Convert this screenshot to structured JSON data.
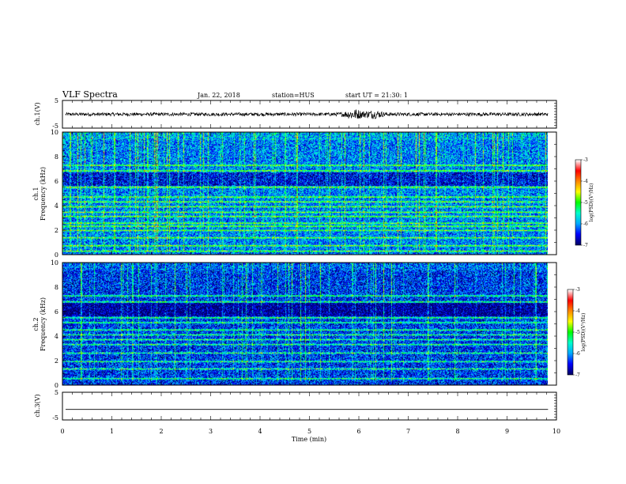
{
  "header": {
    "title": "VLF Spectra",
    "date": "Jan. 22, 2018",
    "station": "station=HUS",
    "start": "start  UT =  21:30: 1"
  },
  "chart_data": {
    "type": "heatmap",
    "x": {
      "label": "Time (min)",
      "range": [
        0,
        10
      ],
      "ticks": [
        "0",
        "1",
        "2",
        "3",
        "4",
        "5",
        "6",
        "7",
        "8",
        "9",
        "10"
      ],
      "data_end": 9.83
    },
    "panels": [
      {
        "id": "ch1-waveform",
        "type": "line",
        "ylabel": "ch.1(V)",
        "ylim": [
          -5,
          5
        ],
        "yticks": [
          "5",
          "-5"
        ],
        "baseline": 0,
        "amplitude": 0.6,
        "bursts": [
          {
            "t": 5.9,
            "amp": 1.4
          },
          {
            "t": 6.3,
            "amp": 1.0
          }
        ]
      },
      {
        "id": "ch1-spectrogram",
        "type": "heatmap",
        "ylabel": "ch.1",
        "ylabel2": "Frequency (kHz)",
        "ylim": [
          0,
          10
        ],
        "yticks": [
          "0",
          "2",
          "4",
          "6",
          "8",
          "10"
        ],
        "background_log_psd": -6.1,
        "lines_khz": [
          0.25,
          0.7,
          1.35,
          1.95,
          2.3,
          2.55,
          3.1,
          3.45,
          3.9,
          4.3,
          4.7,
          5.5,
          6.85,
          7.3
        ],
        "colorbar": {
          "label": "log(PSD)(V²/Hz)",
          "range": [
            -7,
            -3
          ],
          "ticks": [
            "-3",
            "-4",
            "-5",
            "-6",
            "-7"
          ]
        }
      },
      {
        "id": "ch2-spectrogram",
        "type": "heatmap",
        "ylabel": "ch.2",
        "ylabel2": "Frequency (kHz)",
        "ylim": [
          0,
          10
        ],
        "yticks": [
          "0",
          "2",
          "4",
          "6",
          "8",
          "10"
        ],
        "background_log_psd": -6.4,
        "lines_khz": [
          0.5,
          1.3,
          1.9,
          2.6,
          3.3,
          3.7,
          4.1,
          4.5,
          5.1,
          5.5,
          6.8,
          7.3
        ],
        "colorbar": {
          "label": "log(PSD)(V²/Hz)",
          "range": [
            -7,
            -3
          ],
          "ticks": [
            "-3",
            "-4",
            "-5",
            "-6",
            "-7"
          ]
        }
      },
      {
        "id": "ch3-waveform",
        "type": "line",
        "ylabel": "ch.3(V)",
        "ylim": [
          -5,
          5
        ],
        "yticks": [
          "5",
          "-5"
        ],
        "baseline": -1.2,
        "amplitude": 0
      }
    ],
    "colormap": [
      "#000066",
      "#0000ff",
      "#00aaff",
      "#00ffcc",
      "#00ff00",
      "#ffff00",
      "#ff8800",
      "#ff0000",
      "#ffffff"
    ]
  }
}
